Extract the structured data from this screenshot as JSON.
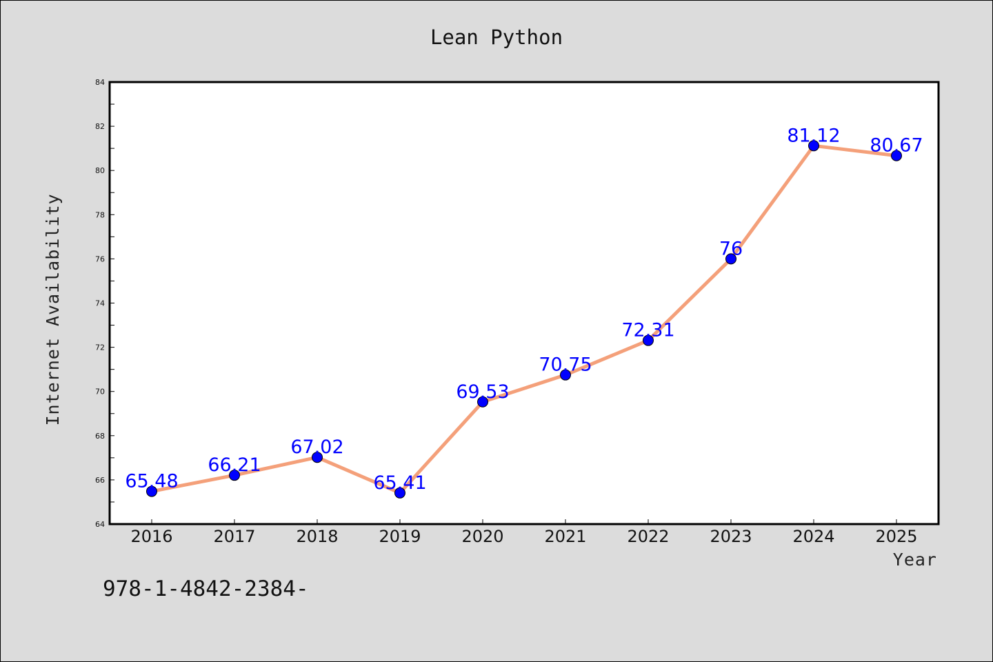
{
  "chart_data": {
    "type": "line",
    "title": "Lean Python",
    "xlabel": "Year",
    "ylabel": "Internet Availability",
    "categories": [
      "2016",
      "2017",
      "2018",
      "2019",
      "2020",
      "2021",
      "2022",
      "2023",
      "2024",
      "2025"
    ],
    "series": [
      {
        "values": [
          65.48,
          66.21,
          67.02,
          65.41,
          69.53,
          70.75,
          72.31,
          76,
          81.12,
          80.67
        ],
        "labels": [
          "65.48",
          "66.21",
          "67.02",
          "65.41",
          "69.53",
          "70.75",
          "72.31",
          "76",
          "81.12",
          "80.67"
        ]
      }
    ],
    "ylim": [
      64,
      84
    ],
    "yticks": [
      "64",
      "66",
      "68",
      "70",
      "72",
      "74",
      "76",
      "78",
      "80",
      "82",
      "84"
    ],
    "grid": false,
    "colors": {
      "line": "#f4a07a",
      "marker": "#0000ff",
      "data_label": "#0000ff",
      "background": "#dcdcdc",
      "plot_area": "#ffffff"
    }
  },
  "footer_text": "978-1-4842-2384-"
}
